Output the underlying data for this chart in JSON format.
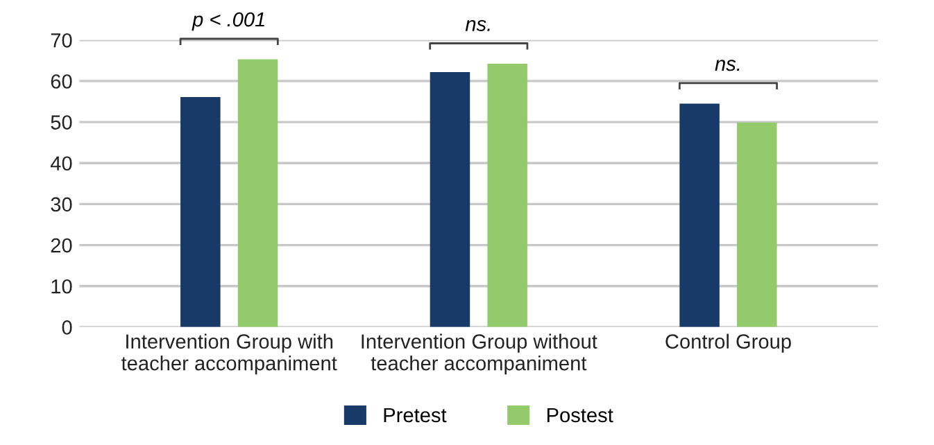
{
  "chart_data": {
    "type": "bar",
    "categories": [
      "Intervention Group with\nteacher accompaniment",
      "Intervention Group without\nteacher accompaniment",
      "Control Group"
    ],
    "series": [
      {
        "name": "Pretest",
        "color": "#173a68",
        "values": [
          56.1,
          62.2,
          54.5
        ]
      },
      {
        "name": "Postest",
        "color": "#93cb6c",
        "values": [
          65.3,
          64.2,
          49.9
        ]
      }
    ],
    "ylim": [
      0,
      70
    ],
    "yticks": [
      0,
      10,
      20,
      30,
      40,
      50,
      60,
      70
    ],
    "grid": "y",
    "legend": "bottom",
    "annotations": [
      "p < .001",
      "ns.",
      "ns."
    ]
  }
}
